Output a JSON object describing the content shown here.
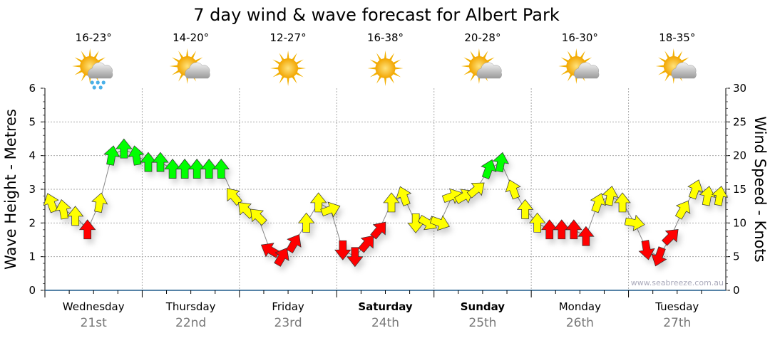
{
  "chart_data": {
    "type": "scatter",
    "title": "7 day wind & wave forecast for Albert Park",
    "ylabel_left": "Wave Height - Metres",
    "ylabel_right": "Wind Speed - Knots",
    "ylim_left": [
      0,
      6
    ],
    "ylim_right": [
      0,
      30
    ],
    "yticks_left": [
      "0",
      "1",
      "2",
      "3",
      "4",
      "5",
      "6"
    ],
    "yticks_right": [
      "0",
      "5",
      "10",
      "15",
      "20",
      "25",
      "30"
    ],
    "grid": true,
    "watermark": "www.seabreeze.com.au",
    "colors": {
      "light": "#ff0000",
      "moderate": "#ffff00",
      "strong": "#00ff00",
      "axis": "#1f5a8a"
    },
    "days": [
      {
        "name": "Wednesday",
        "date": "21st",
        "temp": "16-23°",
        "icon": "sun-cloud-rain-icon",
        "bold": false
      },
      {
        "name": "Thursday",
        "date": "22nd",
        "temp": "14-20°",
        "icon": "sun-cloud-icon",
        "bold": false
      },
      {
        "name": "Friday",
        "date": "23rd",
        "temp": "12-27°",
        "icon": "sun-icon",
        "bold": false
      },
      {
        "name": "Saturday",
        "date": "24th",
        "temp": "16-38°",
        "icon": "sun-icon",
        "bold": true
      },
      {
        "name": "Sunday",
        "date": "25th",
        "temp": "20-28°",
        "icon": "sun-cloud-icon",
        "bold": true
      },
      {
        "name": "Monday",
        "date": "26th",
        "temp": "16-30°",
        "icon": "sun-cloud-icon",
        "bold": false
      },
      {
        "name": "Tuesday",
        "date": "27th",
        "temp": "18-35°",
        "icon": "sun-cloud-icon",
        "bold": false
      }
    ],
    "wind_knots": [
      13,
      12,
      11,
      9,
      13,
      20,
      21,
      20,
      19,
      19,
      18,
      18,
      18,
      18,
      18,
      14,
      12,
      11,
      6,
      5,
      7,
      10,
      13,
      12,
      6,
      5,
      7,
      9,
      13,
      14,
      10,
      10,
      10,
      14,
      14,
      15,
      18,
      19,
      15,
      12,
      10,
      9,
      9,
      9,
      8,
      13,
      14,
      13,
      10,
      6,
      5,
      8,
      12,
      15,
      14,
      14
    ],
    "wind_arrow_direction_deg": [
      -20,
      -10,
      0,
      0,
      10,
      10,
      0,
      -10,
      0,
      0,
      0,
      0,
      0,
      0,
      0,
      -40,
      -45,
      -45,
      -60,
      30,
      30,
      0,
      0,
      70,
      180,
      180,
      40,
      40,
      0,
      -20,
      180,
      120,
      110,
      70,
      60,
      50,
      20,
      10,
      -20,
      0,
      0,
      0,
      0,
      0,
      0,
      20,
      10,
      0,
      100,
      170,
      200,
      45,
      30,
      20,
      10,
      10
    ]
  }
}
